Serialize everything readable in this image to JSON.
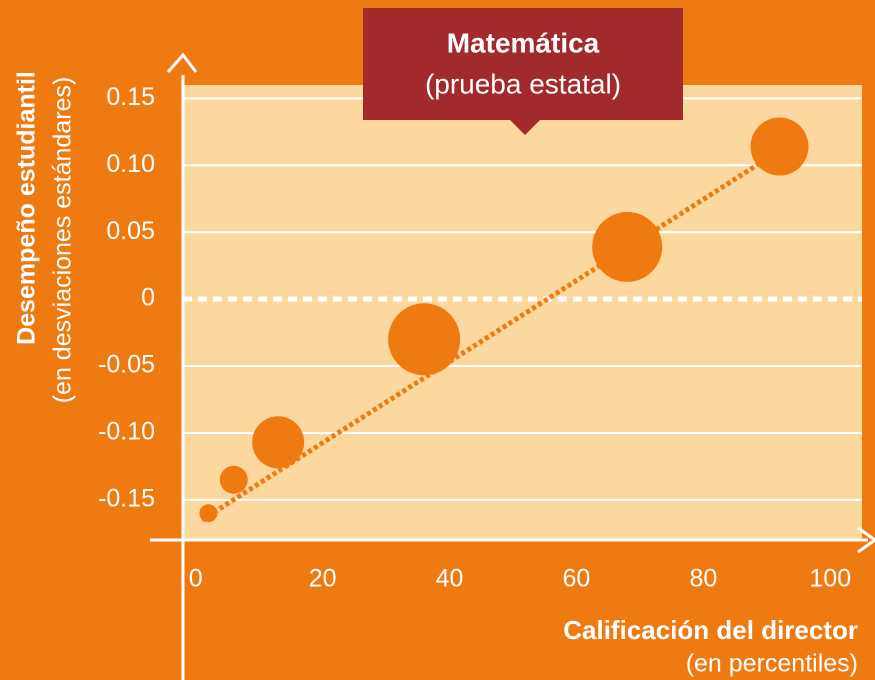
{
  "chart_data": {
    "type": "scatter",
    "title": "Matemática",
    "subtitle": "(prueba estatal)",
    "x_label": "Calificación del director",
    "x_label_sub": "(en percentiles)",
    "y_label": "Desempeño estudiantil",
    "y_label_sub": "(en desviaciones estándares)",
    "xlim": [
      -2,
      105
    ],
    "ylim": [
      -0.18,
      0.16
    ],
    "xticks": [
      0,
      20,
      40,
      60,
      80,
      100
    ],
    "yticks": [
      0.15,
      {
        "value": 0.1,
        "label": "0.10"
      },
      0.05,
      0,
      -0.05,
      {
        "value": -0.1,
        "label": "-0.10"
      },
      -0.15
    ],
    "grid": true,
    "color": "#ef7a12",
    "series": [
      {
        "x": [
          2,
          6,
          13,
          36,
          68,
          92
        ],
        "values": [
          -0.16,
          -0.135,
          -0.107,
          -0.03,
          0.039,
          0.114
        ],
        "sizes": [
          9,
          14,
          26,
          36,
          35,
          29
        ]
      }
    ],
    "trendline": {
      "x": [
        1,
        94
      ],
      "values": [
        -0.165,
        0.117
      ]
    }
  }
}
